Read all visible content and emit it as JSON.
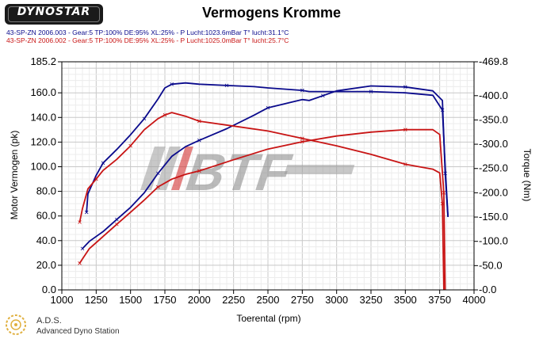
{
  "logo": {
    "text": "DYNOSTAR"
  },
  "runs": [
    {
      "text": "43-SP-ZN 2006.003 - Gear:5 TP:100% DE:95% XL:25%   - P Lucht:1023.6mBar T° lucht:31.1°C",
      "color": "#0a0a8c"
    },
    {
      "text": "43-SP-ZN 2006.002 - Gear:5 TP:100% DE:95% XL:25%   - P Lucht:1025.0mBar T° lucht:25.7°C",
      "color": "#c81414"
    }
  ],
  "footer": {
    "name": "A.D.S.",
    "subtitle": "Advanced Dyno Station"
  },
  "watermark": {
    "text": "BTF"
  },
  "chart_data": {
    "type": "line",
    "title": "Vermogens Kromme",
    "xlabel": "Toerental (rpm)",
    "ylabel": "Motor Vermogen (pk)",
    "y2label": "Torque (Nm)",
    "xlim": [
      1000,
      4000
    ],
    "ylim": [
      0,
      185.2
    ],
    "y2lim": [
      0,
      -469.8
    ],
    "xticks": [
      1000,
      1250,
      1500,
      1750,
      2000,
      2250,
      2500,
      2750,
      3000,
      3250,
      3500,
      3750,
      4000
    ],
    "yticks": [
      0,
      20,
      40,
      60,
      80,
      100,
      120,
      140,
      160,
      185.2
    ],
    "ytick_labels": [
      "0.0",
      "20.0",
      "40.0",
      "60.0",
      "80.0",
      "100.0",
      "120.0",
      "140.0",
      "160.0",
      "185.2"
    ],
    "y2ticks": [
      0,
      -50,
      -100,
      -150,
      -200,
      -250,
      -300,
      -350,
      -400,
      -469.8
    ],
    "y2tick_labels": [
      "-0.0",
      "-50.0",
      "-100.0",
      "-150.0",
      "-200.0",
      "-250.0",
      "-300.0",
      "-350.0",
      "-400.0",
      "-469.8"
    ],
    "grid": true,
    "series": [
      {
        "name": "43-SP-ZN 2006.003",
        "quantity": "power",
        "axis": "left",
        "color": "#0a0a8c",
        "x": [
          1180,
          1190,
          1250,
          1300,
          1400,
          1500,
          1600,
          1700,
          1750,
          1800,
          1900,
          2000,
          2200,
          2400,
          2500,
          2750,
          2800,
          3000,
          3250,
          3500,
          3700,
          3770,
          3790,
          3810
        ],
        "y": [
          63,
          78,
          93,
          103,
          114,
          126,
          139,
          155,
          164,
          167,
          168,
          167,
          166,
          165,
          164,
          162,
          161,
          161,
          161,
          160,
          158,
          146,
          100,
          60
        ]
      },
      {
        "name": "43-SP-ZN 2006.003",
        "quantity": "torque",
        "axis": "right",
        "color": "#0a0a8c",
        "x": [
          1150,
          1200,
          1300,
          1400,
          1500,
          1600,
          1700,
          1800,
          1900,
          2000,
          2200,
          2400,
          2500,
          2750,
          2800,
          2900,
          3000,
          3250,
          3500,
          3700,
          3770,
          3790,
          3810
        ],
        "y": [
          -85,
          -100,
          -120,
          -145,
          -170,
          -200,
          -240,
          -275,
          -295,
          -308,
          -332,
          -360,
          -375,
          -392,
          -390,
          -400,
          -410,
          -420,
          -418,
          -410,
          -390,
          -240,
          -150
        ]
      },
      {
        "name": "43-SP-ZN 2006.002",
        "quantity": "power",
        "axis": "left",
        "color": "#c81414",
        "x": [
          1130,
          1150,
          1190,
          1250,
          1300,
          1400,
          1500,
          1600,
          1700,
          1750,
          1800,
          1900,
          2000,
          2250,
          2500,
          2750,
          3000,
          3250,
          3500,
          3700,
          3750,
          3770,
          3780
        ],
        "y": [
          55,
          66,
          82,
          90,
          97,
          106,
          117,
          130,
          139,
          142,
          144,
          141,
          137,
          133,
          129,
          123,
          117,
          110,
          102,
          98,
          95,
          70,
          0
        ]
      },
      {
        "name": "43-SP-ZN 2006.002",
        "quantity": "torque",
        "axis": "right",
        "color": "#c81414",
        "x": [
          1130,
          1200,
          1300,
          1400,
          1500,
          1600,
          1700,
          1800,
          1900,
          2000,
          2250,
          2500,
          2750,
          3000,
          3250,
          3500,
          3700,
          3750,
          3780,
          3790
        ],
        "y": [
          -55,
          -85,
          -110,
          -135,
          -160,
          -185,
          -212,
          -228,
          -238,
          -245,
          -268,
          -290,
          -305,
          -317,
          -325,
          -330,
          -330,
          -320,
          -200,
          0
        ]
      }
    ]
  }
}
